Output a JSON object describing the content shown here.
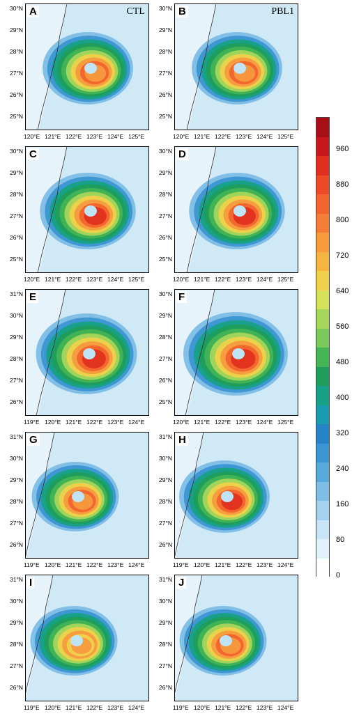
{
  "panels": [
    {
      "label": "A",
      "exp": "CTL",
      "lat": [
        "30°N",
        "29°N",
        "28°N",
        "27°N",
        "26°N",
        "25°N"
      ],
      "lon": [
        "120°E",
        "121°E",
        "122°E",
        "123°E",
        "124°E",
        "125°E"
      ]
    },
    {
      "label": "B",
      "exp": "PBL1",
      "lat": [
        "30°N",
        "29°N",
        "28°N",
        "27°N",
        "26°N",
        "25°N"
      ],
      "lon": [
        "120°E",
        "121°E",
        "122°E",
        "123°E",
        "124°E",
        "125°E"
      ]
    },
    {
      "label": "C",
      "exp": "",
      "lat": [
        "30°N",
        "29°N",
        "28°N",
        "27°N",
        "26°N",
        "25°N"
      ],
      "lon": [
        "120°E",
        "121°E",
        "122°E",
        "123°E",
        "124°E",
        "125°E"
      ]
    },
    {
      "label": "D",
      "exp": "",
      "lat": [
        "30°N",
        "29°N",
        "28°N",
        "27°N",
        "26°N",
        "25°N"
      ],
      "lon": [
        "120°E",
        "121°E",
        "122°E",
        "123°E",
        "124°E",
        "125°E"
      ]
    },
    {
      "label": "E",
      "exp": "",
      "lat": [
        "31°N",
        "30°N",
        "29°N",
        "28°N",
        "27°N",
        "26°N"
      ],
      "lon": [
        "119°E",
        "120°E",
        "121°E",
        "122°E",
        "123°E",
        "124°E"
      ]
    },
    {
      "label": "F",
      "exp": "",
      "lat": [
        "30°N",
        "29°N",
        "28°N",
        "27°N",
        "26°N",
        "25°N"
      ],
      "lon": [
        "120°E",
        "121°E",
        "122°E",
        "123°E",
        "124°E",
        "125°E"
      ]
    },
    {
      "label": "G",
      "exp": "",
      "lat": [
        "31°N",
        "30°N",
        "29°N",
        "28°N",
        "27°N",
        "26°N"
      ],
      "lon": [
        "119°E",
        "120°E",
        "121°E",
        "122°E",
        "123°E",
        "124°E"
      ]
    },
    {
      "label": "H",
      "exp": "",
      "lat": [
        "31°N",
        "30°N",
        "29°N",
        "28°N",
        "27°N",
        "26°N"
      ],
      "lon": [
        "119°E",
        "120°E",
        "121°E",
        "122°E",
        "123°E",
        "124°E"
      ]
    },
    {
      "label": "I",
      "exp": "",
      "lat": [
        "31°N",
        "30°N",
        "29°N",
        "28°N",
        "27°N",
        "26°N"
      ],
      "lon": [
        "119°E",
        "120°E",
        "121°E",
        "122°E",
        "123°E",
        "124°E"
      ]
    },
    {
      "label": "J",
      "exp": "",
      "lat": [
        "31°N",
        "30°N",
        "29°N",
        "28°N",
        "27°N",
        "26°N"
      ],
      "lon": [
        "119°E",
        "120°E",
        "121°E",
        "122°E",
        "123°E",
        "124°E"
      ]
    }
  ],
  "colorbar": {
    "labels": [
      "960",
      "880",
      "800",
      "720",
      "640",
      "560",
      "480",
      "400",
      "320",
      "240",
      "160",
      "80",
      "0"
    ],
    "colors": [
      "#a50f15",
      "#c8161d",
      "#e0301e",
      "#ec4a26",
      "#f2642d",
      "#f47d38",
      "#f69a3e",
      "#f6b441",
      "#f0d24b",
      "#d6e25b",
      "#a7d65c",
      "#78c85a",
      "#45b454",
      "#1e9e5a",
      "#16a085",
      "#1a9bb1",
      "#2684c6",
      "#3b95d3",
      "#5aa9dd",
      "#7dbde6",
      "#a3d1ee",
      "#c7e5f6",
      "#e2f2fb",
      "#ffffff"
    ]
  },
  "field_colors": {
    "background": "#cfe9f6",
    "land": "#e7f3fa"
  }
}
